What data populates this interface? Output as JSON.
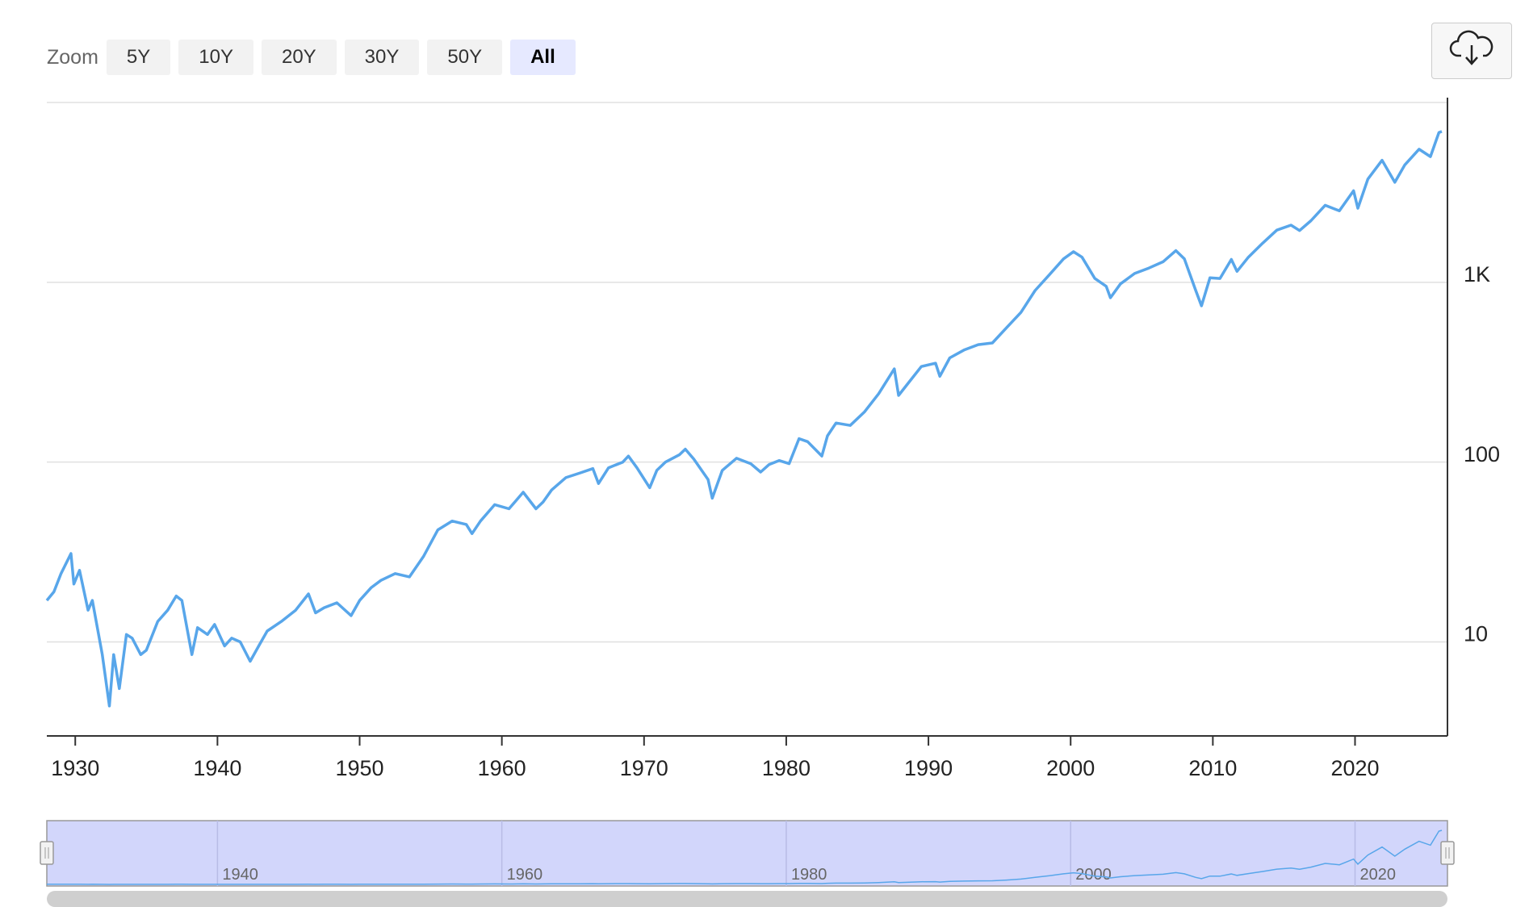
{
  "chart_data": {
    "type": "line",
    "zoom": {
      "label": "Zoom",
      "buttons": [
        "5Y",
        "10Y",
        "20Y",
        "30Y",
        "50Y",
        "All"
      ]
    },
    "log_y": true,
    "grid": true,
    "xlim": [
      1928,
      2026.5
    ],
    "xticks": [
      1930,
      1940,
      1950,
      1960,
      1970,
      1980,
      1990,
      2000,
      2010,
      2020
    ],
    "ylim": [
      3,
      10000
    ],
    "yticks": [
      10,
      100,
      {
        "value": 1000,
        "label": "1K"
      }
    ],
    "navigator": {
      "xticks": [
        1940,
        1960,
        1980,
        2000,
        2020
      ]
    },
    "series": [
      {
        "color": "#58a6ea",
        "x": [
          1928.0,
          1928.5,
          1929.0,
          1929.7,
          1929.9,
          1930.3,
          1930.9,
          1931.2,
          1931.9,
          1932.4,
          1932.7,
          1933.1,
          1933.6,
          1934.0,
          1934.6,
          1935.0,
          1935.8,
          1936.5,
          1937.1,
          1937.5,
          1938.2,
          1938.6,
          1939.3,
          1939.8,
          1940.5,
          1941.0,
          1941.6,
          1942.3,
          1942.9,
          1943.5,
          1944.5,
          1945.5,
          1946.4,
          1946.9,
          1947.5,
          1948.4,
          1949.4,
          1950.0,
          1950.8,
          1951.5,
          1952.5,
          1953.5,
          1954.5,
          1955.5,
          1956.5,
          1957.5,
          1957.9,
          1958.5,
          1959.5,
          1960.5,
          1961.5,
          1962.4,
          1962.9,
          1963.5,
          1964.5,
          1965.5,
          1966.4,
          1966.8,
          1967.5,
          1968.5,
          1968.9,
          1969.5,
          1970.4,
          1970.9,
          1971.5,
          1972.5,
          1972.9,
          1973.5,
          1974.5,
          1974.8,
          1975.5,
          1976.5,
          1977.5,
          1978.2,
          1978.8,
          1979.5,
          1980.2,
          1980.9,
          1981.5,
          1982.5,
          1982.9,
          1983.5,
          1984.5,
          1985.5,
          1986.5,
          1987.6,
          1987.9,
          1988.5,
          1989.5,
          1990.5,
          1990.8,
          1991.5,
          1992.5,
          1993.5,
          1994.5,
          1995.5,
          1996.5,
          1997.5,
          1998.5,
          1999.5,
          2000.2,
          2000.8,
          2001.7,
          2002.5,
          2002.8,
          2003.5,
          2004.5,
          2005.5,
          2006.5,
          2007.4,
          2008.0,
          2008.8,
          2009.2,
          2009.8,
          2010.5,
          2011.3,
          2011.7,
          2012.5,
          2013.5,
          2014.5,
          2015.5,
          2016.1,
          2016.9,
          2017.9,
          2018.9,
          2019.9,
          2020.2,
          2020.9,
          2021.9,
          2022.8,
          2023.5,
          2024.5,
          2025.3,
          2025.9,
          2026.1
        ],
        "values": [
          17,
          19,
          24,
          31,
          21,
          25,
          15,
          17,
          8.5,
          4.4,
          8.5,
          5.5,
          11,
          10.5,
          8.5,
          9,
          13,
          15,
          18,
          17,
          8.5,
          12,
          11,
          12.5,
          9.5,
          10.5,
          10,
          7.8,
          9.5,
          11.5,
          13,
          15,
          18.5,
          14.5,
          15.5,
          16.5,
          14,
          17,
          20,
          22,
          24,
          23,
          30,
          42,
          47,
          45,
          40,
          47,
          58,
          55,
          68,
          55,
          60,
          70,
          82,
          87,
          92,
          76,
          93,
          100,
          108,
          93,
          72,
          90,
          100,
          110,
          118,
          104,
          80,
          63,
          90,
          105,
          98,
          88,
          97,
          102,
          98,
          135,
          130,
          108,
          140,
          165,
          160,
          190,
          240,
          330,
          235,
          270,
          340,
          355,
          300,
          380,
          420,
          450,
          460,
          560,
          680,
          900,
          1100,
          1350,
          1480,
          1380,
          1050,
          950,
          820,
          980,
          1120,
          1200,
          1300,
          1500,
          1350,
          900,
          740,
          1060,
          1050,
          1340,
          1150,
          1380,
          1650,
          1950,
          2080,
          1940,
          2200,
          2680,
          2500,
          3230,
          2580,
          3750,
          4770,
          3600,
          4500,
          5500,
          5000,
          6800,
          6900
        ]
      }
    ]
  }
}
